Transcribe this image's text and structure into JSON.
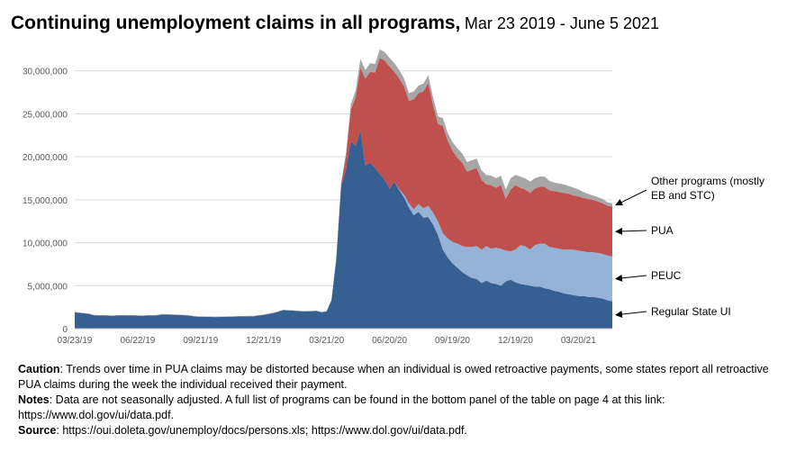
{
  "chart_data": {
    "type": "area",
    "stacked": true,
    "title": "Continuing unemployment claims in all programs,",
    "subtitle": "Mar 23 2019 - June 5 2021",
    "ylim": [
      0,
      35000000
    ],
    "yticks": [
      0,
      5000000,
      10000000,
      15000000,
      20000000,
      25000000,
      30000000
    ],
    "ytick_labels": [
      "0",
      "5,000,000",
      "10,000,000",
      "15,000,000",
      "20,000,000",
      "25,000,000",
      "30,000,000"
    ],
    "xtick_labels": [
      "03/23/19",
      "06/22/19",
      "09/21/19",
      "12/21/19",
      "03/21/20",
      "06/20/20",
      "09/19/20",
      "12/19/20",
      "03/20/21"
    ],
    "xtick_weeks": [
      0,
      13,
      26,
      39,
      52,
      65,
      78,
      91,
      104
    ],
    "week_count": 111,
    "series": [
      {
        "name": "Regular State UI",
        "color": "#376092",
        "points": [
          [
            0,
            1900000
          ],
          [
            3,
            1700000
          ],
          [
            4,
            1550000
          ],
          [
            8,
            1500000
          ],
          [
            10,
            1550000
          ],
          [
            14,
            1500000
          ],
          [
            17,
            1550000
          ],
          [
            18,
            1650000
          ],
          [
            21,
            1600000
          ],
          [
            23,
            1550000
          ],
          [
            25,
            1400000
          ],
          [
            29,
            1350000
          ],
          [
            33,
            1400000
          ],
          [
            37,
            1450000
          ],
          [
            39,
            1600000
          ],
          [
            41,
            1800000
          ],
          [
            43,
            2150000
          ],
          [
            45,
            2100000
          ],
          [
            47,
            2000000
          ],
          [
            50,
            2050000
          ],
          [
            51,
            1900000
          ],
          [
            52,
            2000000
          ],
          [
            53,
            3300000
          ],
          [
            54,
            8000000
          ],
          [
            55,
            16500000
          ],
          [
            56,
            18500000
          ],
          [
            57,
            21800000
          ],
          [
            58,
            21300000
          ],
          [
            59,
            23100000
          ],
          [
            60,
            19000000
          ],
          [
            61,
            19300000
          ],
          [
            62,
            18700000
          ],
          [
            63,
            18000000
          ],
          [
            64,
            17300000
          ],
          [
            65,
            16300000
          ],
          [
            66,
            17100000
          ],
          [
            67,
            16100000
          ],
          [
            68,
            15300000
          ],
          [
            69,
            14100000
          ],
          [
            70,
            13200000
          ],
          [
            71,
            13600000
          ],
          [
            72,
            12900000
          ],
          [
            73,
            13000000
          ],
          [
            74,
            12100000
          ],
          [
            75,
            10900000
          ],
          [
            76,
            9200000
          ],
          [
            77,
            8300000
          ],
          [
            78,
            7600000
          ],
          [
            79,
            7100000
          ],
          [
            80,
            6600000
          ],
          [
            81,
            6200000
          ],
          [
            82,
            5900000
          ],
          [
            83,
            5800000
          ],
          [
            84,
            5300000
          ],
          [
            85,
            5600000
          ],
          [
            86,
            5300000
          ],
          [
            87,
            5200000
          ],
          [
            88,
            5000000
          ],
          [
            89,
            5500000
          ],
          [
            90,
            5700000
          ],
          [
            91,
            5400000
          ],
          [
            92,
            5200000
          ],
          [
            93,
            5100000
          ],
          [
            94,
            5000000
          ],
          [
            95,
            4900000
          ],
          [
            96,
            4900000
          ],
          [
            97,
            4700000
          ],
          [
            98,
            4600000
          ],
          [
            99,
            4400000
          ],
          [
            100,
            4300000
          ],
          [
            101,
            4100000
          ],
          [
            102,
            4000000
          ],
          [
            103,
            3900000
          ],
          [
            104,
            3800000
          ],
          [
            105,
            3800000
          ],
          [
            106,
            3700000
          ],
          [
            107,
            3700000
          ],
          [
            108,
            3600000
          ],
          [
            109,
            3500000
          ],
          [
            110,
            3300000
          ],
          [
            111,
            3200000
          ]
        ]
      },
      {
        "name": "PEUC",
        "color": "#95b3d7",
        "points": [
          [
            0,
            0
          ],
          [
            66,
            0
          ],
          [
            67,
            100000
          ],
          [
            68,
            300000
          ],
          [
            69,
            500000
          ],
          [
            70,
            700000
          ],
          [
            71,
            900000
          ],
          [
            72,
            1100000
          ],
          [
            73,
            1300000
          ],
          [
            74,
            1400000
          ],
          [
            75,
            1600000
          ],
          [
            76,
            1900000
          ],
          [
            77,
            2200000
          ],
          [
            78,
            2500000
          ],
          [
            79,
            2800000
          ],
          [
            80,
            3000000
          ],
          [
            81,
            3300000
          ],
          [
            82,
            3600000
          ],
          [
            83,
            3800000
          ],
          [
            84,
            3900000
          ],
          [
            85,
            4000000
          ],
          [
            86,
            4000000
          ],
          [
            87,
            4200000
          ],
          [
            88,
            4300000
          ],
          [
            89,
            3600000
          ],
          [
            90,
            3300000
          ],
          [
            91,
            3800000
          ],
          [
            92,
            4500000
          ],
          [
            93,
            4500000
          ],
          [
            94,
            4200000
          ],
          [
            95,
            4800000
          ],
          [
            96,
            5000000
          ],
          [
            97,
            5200000
          ],
          [
            98,
            4900000
          ],
          [
            99,
            5000000
          ],
          [
            100,
            5000000
          ],
          [
            101,
            5100000
          ],
          [
            102,
            5200000
          ],
          [
            103,
            5300000
          ],
          [
            104,
            5300000
          ],
          [
            105,
            5200000
          ],
          [
            106,
            5200000
          ],
          [
            107,
            5200000
          ],
          [
            108,
            5200000
          ],
          [
            109,
            5200000
          ],
          [
            110,
            5200000
          ],
          [
            111,
            5200000
          ]
        ]
      },
      {
        "name": "PUA",
        "color": "#c0504d",
        "points": [
          [
            0,
            0
          ],
          [
            53,
            0
          ],
          [
            54,
            100000
          ],
          [
            55,
            300000
          ],
          [
            56,
            1500000
          ],
          [
            57,
            3700000
          ],
          [
            58,
            5600000
          ],
          [
            59,
            7300000
          ],
          [
            60,
            10100000
          ],
          [
            61,
            10600000
          ],
          [
            62,
            11100000
          ],
          [
            63,
            13500000
          ],
          [
            64,
            13900000
          ],
          [
            65,
            14200000
          ],
          [
            66,
            12800000
          ],
          [
            67,
            12900000
          ],
          [
            68,
            12600000
          ],
          [
            69,
            11900000
          ],
          [
            70,
            12800000
          ],
          [
            71,
            12900000
          ],
          [
            72,
            13600000
          ],
          [
            73,
            14300000
          ],
          [
            74,
            12500000
          ],
          [
            75,
            11300000
          ],
          [
            76,
            12500000
          ],
          [
            77,
            11400000
          ],
          [
            78,
            10600000
          ],
          [
            79,
            10000000
          ],
          [
            80,
            9700000
          ],
          [
            81,
            8800000
          ],
          [
            82,
            9000000
          ],
          [
            83,
            9100000
          ],
          [
            84,
            8100000
          ],
          [
            85,
            7200000
          ],
          [
            86,
            7400000
          ],
          [
            87,
            7000000
          ],
          [
            88,
            7400000
          ],
          [
            89,
            6000000
          ],
          [
            90,
            7200000
          ],
          [
            91,
            7500000
          ],
          [
            92,
            6700000
          ],
          [
            93,
            6600000
          ],
          [
            94,
            6600000
          ],
          [
            95,
            6600000
          ],
          [
            96,
            6600000
          ],
          [
            97,
            6600000
          ],
          [
            98,
            6600000
          ],
          [
            99,
            6600000
          ],
          [
            100,
            6600000
          ],
          [
            101,
            6600000
          ],
          [
            102,
            6500000
          ],
          [
            103,
            6300000
          ],
          [
            104,
            6300000
          ],
          [
            105,
            6200000
          ],
          [
            106,
            6200000
          ],
          [
            107,
            6100000
          ],
          [
            108,
            6000000
          ],
          [
            109,
            5900000
          ],
          [
            110,
            5800000
          ],
          [
            111,
            5800000
          ]
        ]
      },
      {
        "name": "Other programs (mostly EB and STC)",
        "color": "#a6a6a6",
        "points": [
          [
            0,
            50000
          ],
          [
            52,
            50000
          ],
          [
            53,
            50000
          ],
          [
            54,
            100000
          ],
          [
            55,
            200000
          ],
          [
            56,
            400000
          ],
          [
            57,
            600000
          ],
          [
            58,
            800000
          ],
          [
            59,
            1000000
          ],
          [
            60,
            1000000
          ],
          [
            61,
            1000000
          ],
          [
            62,
            1000000
          ],
          [
            63,
            1000000
          ],
          [
            64,
            1000000
          ],
          [
            65,
            1000000
          ],
          [
            66,
            1000000
          ],
          [
            67,
            1000000
          ],
          [
            68,
            900000
          ],
          [
            69,
            900000
          ],
          [
            70,
            900000
          ],
          [
            71,
            900000
          ],
          [
            72,
            900000
          ],
          [
            73,
            900000
          ],
          [
            74,
            900000
          ],
          [
            75,
            900000
          ],
          [
            76,
            900000
          ],
          [
            77,
            900000
          ],
          [
            78,
            1000000
          ],
          [
            79,
            1100000
          ],
          [
            80,
            1100000
          ],
          [
            81,
            1100000
          ],
          [
            82,
            1100000
          ],
          [
            83,
            1100000
          ],
          [
            84,
            1100000
          ],
          [
            85,
            1100000
          ],
          [
            86,
            1100000
          ],
          [
            87,
            1100000
          ],
          [
            88,
            1100000
          ],
          [
            89,
            1100000
          ],
          [
            90,
            1300000
          ],
          [
            91,
            1200000
          ],
          [
            92,
            1300000
          ],
          [
            93,
            1300000
          ],
          [
            94,
            1300000
          ],
          [
            95,
            1200000
          ],
          [
            96,
            1200000
          ],
          [
            97,
            1200000
          ],
          [
            98,
            1100000
          ],
          [
            99,
            1000000
          ],
          [
            100,
            1000000
          ],
          [
            101,
            1000000
          ],
          [
            102,
            900000
          ],
          [
            103,
            900000
          ],
          [
            104,
            800000
          ],
          [
            105,
            700000
          ],
          [
            106,
            600000
          ],
          [
            107,
            500000
          ],
          [
            108,
            500000
          ],
          [
            109,
            500000
          ],
          [
            110,
            400000
          ],
          [
            111,
            400000
          ]
        ]
      }
    ],
    "annotations": [
      {
        "label": "Other programs (mostly",
        "label2": "EB and STC)",
        "series": 3
      },
      {
        "label": "PUA",
        "series": 2
      },
      {
        "label": "PEUC",
        "series": 1
      },
      {
        "label": "Regular State UI",
        "series": 0
      }
    ]
  },
  "notes": {
    "caution_label": "Caution",
    "caution_text": ": Trends over time in PUA claims may be distorted because when an individual is owed retroactive payments, some states report all retroactive PUA claims during the week the individual received their payment.",
    "notes_label": "Notes",
    "notes_text": ":  Data are not seasonally adjusted. A full list of programs can be found in the bottom panel of the table on page 4 at this link: https://www.dol.gov/ui/data.pdf.",
    "source_label": "Source",
    "source_text": ":  https://oui.doleta.gov/unemploy/docs/persons.xls; https://www.dol.gov/ui/data.pdf."
  }
}
